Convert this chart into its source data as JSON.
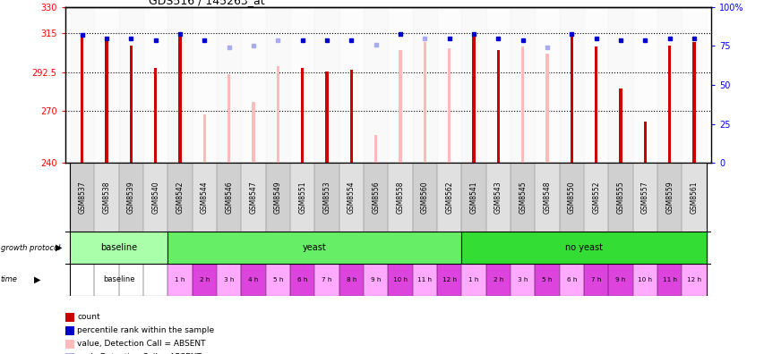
{
  "title": "GDS516 / 145263_at",
  "samples": [
    "GSM8537",
    "GSM8538",
    "GSM8539",
    "GSM8540",
    "GSM8542",
    "GSM8544",
    "GSM8546",
    "GSM8547",
    "GSM8549",
    "GSM8551",
    "GSM8553",
    "GSM8554",
    "GSM8556",
    "GSM8558",
    "GSM8560",
    "GSM8562",
    "GSM8541",
    "GSM8543",
    "GSM8545",
    "GSM8548",
    "GSM8550",
    "GSM8552",
    "GSM8555",
    "GSM8557",
    "GSM8559",
    "GSM8561"
  ],
  "count_values": [
    313,
    311,
    308,
    295,
    314,
    268,
    291,
    275,
    296,
    295,
    293,
    294,
    256,
    305,
    310,
    306,
    315,
    305,
    307,
    303,
    314,
    307,
    283,
    264,
    308,
    310
  ],
  "absent": [
    false,
    false,
    false,
    false,
    false,
    true,
    true,
    true,
    true,
    false,
    false,
    false,
    true,
    true,
    true,
    true,
    false,
    false,
    true,
    true,
    false,
    false,
    false,
    false,
    false,
    false
  ],
  "rank_values": [
    82,
    80,
    80,
    79,
    83,
    79,
    74,
    75,
    79,
    79,
    79,
    79,
    76,
    83,
    80,
    80,
    83,
    80,
    79,
    74,
    83,
    80,
    79,
    79,
    80,
    80
  ],
  "rank_absent": [
    false,
    false,
    false,
    false,
    false,
    false,
    true,
    true,
    true,
    false,
    false,
    false,
    true,
    false,
    true,
    false,
    false,
    false,
    false,
    true,
    false,
    false,
    false,
    false,
    false,
    false
  ],
  "ylim_left": [
    240,
    330
  ],
  "ylim_right": [
    0,
    100
  ],
  "yticks_left": [
    240,
    270,
    292.5,
    315,
    330
  ],
  "yticks_right": [
    0,
    25,
    50,
    75,
    100
  ],
  "bar_color_present": "#CC0000",
  "bar_color_absent": "#FFBBBB",
  "rank_color_present": "#0000CC",
  "rank_color_absent": "#AAAAEE",
  "gp_baseline_color": "#AAFFAA",
  "gp_yeast_color": "#66EE66",
  "gp_noyeast_color": "#33DD33",
  "time_pink_light": "#FFAAFF",
  "time_pink_dark": "#DD44DD",
  "time_white": "#FFFFFF",
  "label_area_color": "#D8D8D8",
  "yeast_times": [
    "1 h",
    "2 h",
    "3 h",
    "4 h",
    "5 h",
    "6 h",
    "7 h",
    "8 h",
    "9 h",
    "10 h",
    "11 h",
    "12 h"
  ],
  "noyeast_times": [
    "1 h",
    "2 h",
    "3 h",
    "5 h",
    "6 h",
    "7 h",
    "9 h",
    "10 h",
    "11 h",
    "12 h"
  ]
}
